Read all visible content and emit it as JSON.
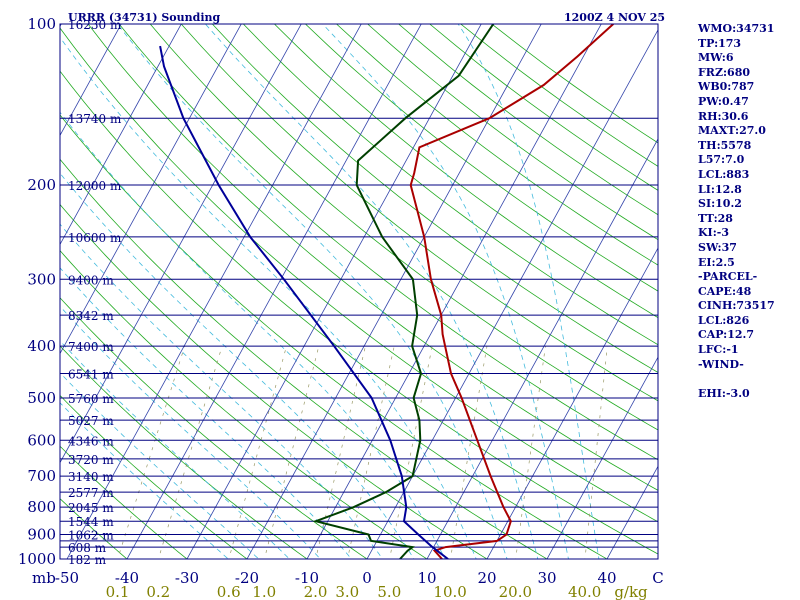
{
  "header": {
    "left": "URRR (34731) Sounding",
    "right": "1200Z  4 NOV 25"
  },
  "indices": [
    "WMO:34731",
    "TP:173",
    "MW:6",
    "FRZ:680",
    "WB0:787",
    "PW:0.47",
    "RH:30.6",
    "MAXT:27.0",
    "TH:5578",
    "L57:7.0",
    "LCL:883",
    "LI:12.8",
    "SI:10.2",
    "TT:28",
    "KI:-3",
    "SW:37",
    "EI:2.5",
    "-PARCEL-",
    "CAPE:48",
    "CINH:73517",
    "LCL:826",
    "CAP:12.7",
    "LFC:-1",
    "-WIND-",
    "",
    "EHI:-3.0"
  ],
  "chart_data": {
    "type": "skew-t",
    "pressure_label_ticks": [
      100,
      200,
      300,
      400,
      500,
      600,
      700,
      800,
      900,
      1000
    ],
    "pressure_lines": [
      100,
      150,
      200,
      250,
      300,
      350,
      400,
      450,
      500,
      550,
      600,
      650,
      700,
      750,
      800,
      850,
      900,
      925,
      950,
      1000
    ],
    "height_labels": [
      {
        "p": 100,
        "label": "16230 m"
      },
      {
        "p": 150,
        "label": "13740 m"
      },
      {
        "p": 200,
        "label": "12000 m"
      },
      {
        "p": 250,
        "label": "10600 m"
      },
      {
        "p": 300,
        "label": "9400 m"
      },
      {
        "p": 350,
        "label": "8342 m"
      },
      {
        "p": 400,
        "label": "7400 m"
      },
      {
        "p": 450,
        "label": "6541 m"
      },
      {
        "p": 500,
        "label": "5760 m"
      },
      {
        "p": 550,
        "label": "5027 m"
      },
      {
        "p": 600,
        "label": "4346 m"
      },
      {
        "p": 650,
        "label": "3720 m"
      },
      {
        "p": 700,
        "label": "3140 m"
      },
      {
        "p": 750,
        "label": "2577 m"
      },
      {
        "p": 800,
        "label": "2045 m"
      },
      {
        "p": 850,
        "label": "1544 m"
      },
      {
        "p": 900,
        "label": "1062 m"
      },
      {
        "p": 950,
        "label": "608 m"
      },
      {
        "p": 1000,
        "label": "182 m"
      }
    ],
    "temperature_axis": {
      "unit_label": "mb",
      "ticks": [
        -50,
        -40,
        -30,
        -20,
        -10,
        0,
        10,
        20,
        30,
        40
      ],
      "end_label": "C"
    },
    "mixing_ratio_axis": {
      "unit_label": "g/kg",
      "ticks": [
        {
          "w": 0.1,
          "label": "0.1"
        },
        {
          "w": 0.2,
          "label": "0.2"
        },
        {
          "w": 0.6,
          "label": "0.6"
        },
        {
          "w": 1.0,
          "label": "1.0"
        },
        {
          "w": 2.0,
          "label": "2.0"
        },
        {
          "w": 3.0,
          "label": "3.0"
        },
        {
          "w": 5.0,
          "label": "5.0"
        },
        {
          "w": 10.0,
          "label": "10.0"
        },
        {
          "w": 20.0,
          "label": "20.0"
        },
        {
          "w": 40.0,
          "label": "40.0"
        }
      ]
    },
    "series": [
      {
        "name": "Temperature",
        "color": "#aa0000",
        "points": [
          [
            1000,
            12.5
          ],
          [
            965,
            10.5
          ],
          [
            950,
            12
          ],
          [
            925,
            20
          ],
          [
            900,
            21
          ],
          [
            850,
            20.5
          ],
          [
            800,
            18
          ],
          [
            700,
            13
          ],
          [
            600,
            7.5
          ],
          [
            500,
            1
          ],
          [
            450,
            -3
          ],
          [
            400,
            -6.5
          ],
          [
            380,
            -8
          ],
          [
            350,
            -10
          ],
          [
            300,
            -15
          ],
          [
            250,
            -20
          ],
          [
            200,
            -27
          ],
          [
            190,
            -27.5
          ],
          [
            170,
            -29
          ],
          [
            150,
            -20
          ],
          [
            130,
            -14
          ],
          [
            115,
            -11
          ],
          [
            100,
            -8
          ]
        ]
      },
      {
        "name": "Dewpoint",
        "color": "#004000",
        "points": [
          [
            1000,
            5.5
          ],
          [
            965,
            6
          ],
          [
            950,
            6.5
          ],
          [
            925,
            -1
          ],
          [
            900,
            -2
          ],
          [
            850,
            -12
          ],
          [
            800,
            -7
          ],
          [
            750,
            -3
          ],
          [
            700,
            0
          ],
          [
            600,
            -2
          ],
          [
            550,
            -4
          ],
          [
            500,
            -7
          ],
          [
            450,
            -8
          ],
          [
            400,
            -12
          ],
          [
            350,
            -14
          ],
          [
            300,
            -18
          ],
          [
            250,
            -27
          ],
          [
            200,
            -36
          ],
          [
            180,
            -38
          ],
          [
            150,
            -34
          ],
          [
            125,
            -29
          ],
          [
            100,
            -28
          ]
        ]
      },
      {
        "name": "Parcel",
        "color": "#000099",
        "points": [
          [
            1000,
            13.5
          ],
          [
            950,
            9.8
          ],
          [
            900,
            6.3
          ],
          [
            850,
            2.7
          ],
          [
            800,
            1.8
          ],
          [
            700,
            -1.8
          ],
          [
            600,
            -7
          ],
          [
            500,
            -14
          ],
          [
            400,
            -25
          ],
          [
            300,
            -39.5
          ],
          [
            250,
            -49
          ],
          [
            200,
            -59
          ],
          [
            150,
            -71
          ],
          [
            120,
            -79
          ],
          [
            110,
            -81.5
          ]
        ]
      }
    ]
  }
}
